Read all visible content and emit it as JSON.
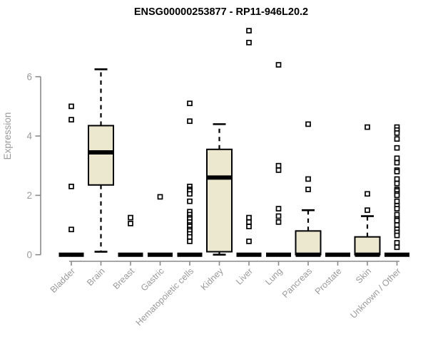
{
  "chart_data": {
    "type": "boxplot",
    "title": "ENSG00000253877 - RP11-946L20.2",
    "ylabel": "Expression",
    "xlabel": "",
    "yticks": [
      0,
      2,
      4,
      6
    ],
    "ylim": [
      0,
      7.8
    ],
    "grid": false,
    "legend": "none",
    "categories": [
      "Bladder",
      "Brain",
      "Breast",
      "Gastric",
      "Hematopoietic cells",
      "Kidney",
      "Liver",
      "Lung",
      "Pancreas",
      "Prostate",
      "Skin",
      "Unknown / Other"
    ],
    "series": [
      {
        "name": "Bladder",
        "q1": 0,
        "median": 0,
        "q3": 0,
        "whisker_low": 0,
        "whisker_high": 0,
        "outliers": [
          5.0,
          4.55,
          2.3,
          0.85
        ]
      },
      {
        "name": "Brain",
        "q1": 2.35,
        "median": 3.45,
        "q3": 4.35,
        "whisker_low": 0.1,
        "whisker_high": 6.25,
        "outliers": []
      },
      {
        "name": "Breast",
        "q1": 0,
        "median": 0,
        "q3": 0,
        "whisker_low": 0,
        "whisker_high": 0,
        "outliers": [
          1.25,
          1.05
        ]
      },
      {
        "name": "Gastric",
        "q1": 0,
        "median": 0,
        "q3": 0,
        "whisker_low": 0,
        "whisker_high": 0,
        "outliers": [
          1.95
        ]
      },
      {
        "name": "Hematopoietic cells",
        "q1": 0,
        "median": 0,
        "q3": 0,
        "whisker_low": 0,
        "whisker_high": 0,
        "outliers": [
          5.1,
          4.5,
          2.3,
          2.2,
          2.15,
          2.05,
          1.8,
          1.45,
          1.35,
          1.25,
          1.2,
          1.1,
          1.0,
          0.95,
          0.85,
          0.8,
          0.7,
          0.6,
          0.45
        ]
      },
      {
        "name": "Kidney",
        "q1": 0.1,
        "median": 2.6,
        "q3": 3.55,
        "whisker_low": 0,
        "whisker_high": 4.4,
        "outliers": []
      },
      {
        "name": "Liver",
        "q1": 0,
        "median": 0,
        "q3": 0,
        "whisker_low": 0,
        "whisker_high": 0,
        "outliers": [
          7.55,
          7.15,
          1.25,
          1.1,
          0.95,
          0.45
        ]
      },
      {
        "name": "Lung",
        "q1": 0,
        "median": 0,
        "q3": 0,
        "whisker_low": 0,
        "whisker_high": 0,
        "outliers": [
          6.4,
          3.0,
          2.85,
          1.55,
          1.3,
          1.1
        ]
      },
      {
        "name": "Pancreas",
        "q1": 0,
        "median": 0,
        "q3": 0.8,
        "whisker_low": 0,
        "whisker_high": 1.5,
        "outliers": [
          4.4,
          2.55,
          2.2
        ]
      },
      {
        "name": "Prostate",
        "q1": 0,
        "median": 0,
        "q3": 0,
        "whisker_low": 0,
        "whisker_high": 0,
        "outliers": []
      },
      {
        "name": "Skin",
        "q1": 0,
        "median": 0,
        "q3": 0.6,
        "whisker_low": 0,
        "whisker_high": 1.3,
        "outliers": [
          4.3,
          2.05,
          1.5
        ]
      },
      {
        "name": "Unknown / Other",
        "q1": 0,
        "median": 0,
        "q3": 0,
        "whisker_low": 0,
        "whisker_high": 0,
        "outliers": [
          4.3,
          4.2,
          4.1,
          3.9,
          3.6,
          3.25,
          3.1,
          2.85,
          2.8,
          2.55,
          2.4,
          2.2,
          2.15,
          2.05,
          2.0,
          1.8,
          1.65,
          1.55,
          1.35,
          1.2,
          1.15,
          1.0,
          0.85,
          0.75,
          0.65,
          0.4,
          0.25
        ]
      }
    ],
    "colors": {
      "box_fill": "#ece8d0",
      "box_stroke": "#000000",
      "median": "#000000",
      "outlier_stroke": "#000000",
      "outlier_fill": "#ffffff",
      "axis": "#8a8a8a",
      "tick_labels": "#9a9a9a",
      "title": "#000000",
      "background": "#ffffff"
    }
  }
}
